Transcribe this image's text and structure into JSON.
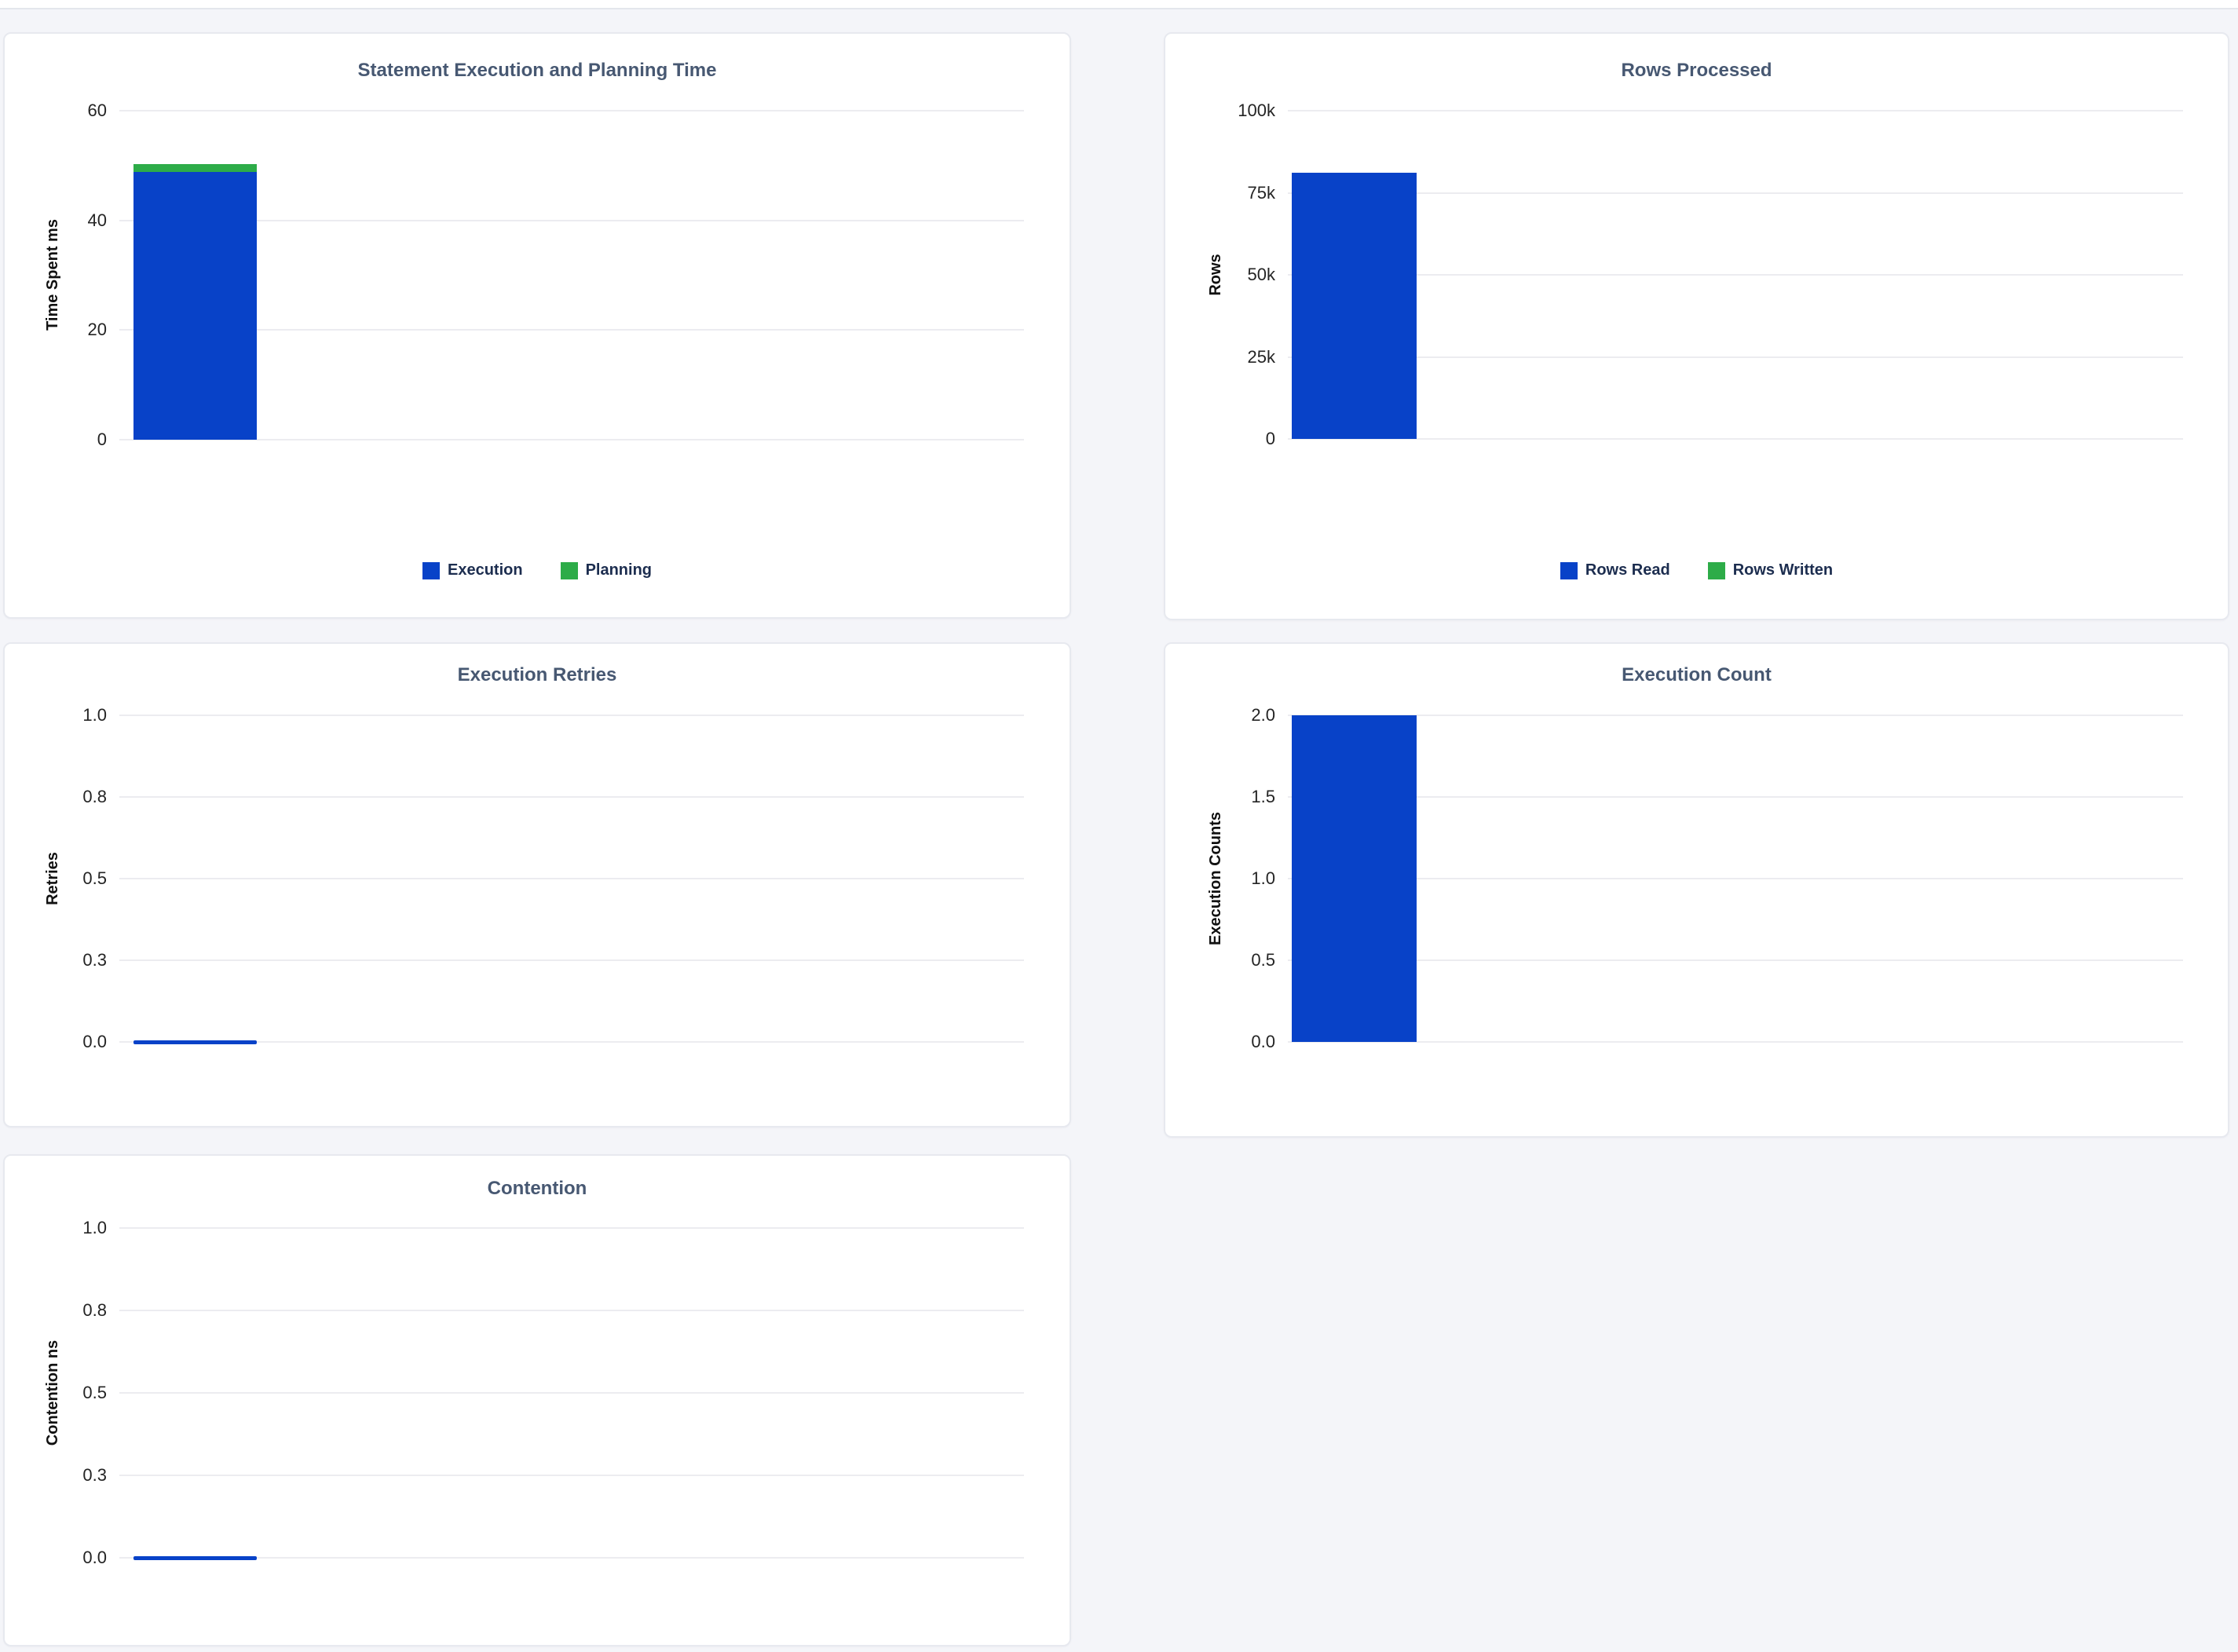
{
  "colors": {
    "blue": "#0842c8",
    "green": "#2dac48",
    "title": "#475872",
    "tick": "#242424",
    "legend_text": "#1c2d4f",
    "grid": "#ececf0",
    "card_border": "#e7e9ef",
    "card_bg": "#ffffff",
    "page_bg": "#f4f5f9"
  },
  "chart_data": [
    {
      "type": "bar",
      "title": "Statement Execution and Planning Time",
      "ylabel": "Time Spent ms",
      "ylim": [
        0,
        60
      ],
      "yticks": [
        "60",
        "40",
        "20",
        "0"
      ],
      "stacked": true,
      "grid": "horizontal",
      "legend_position": "bottom-center",
      "series": [
        {
          "name": "Execution",
          "value": 48.8,
          "color": "blue"
        },
        {
          "name": "Planning",
          "value": 1.5,
          "color": "green"
        }
      ],
      "legend": [
        {
          "label": "Execution",
          "color": "blue"
        },
        {
          "label": "Planning",
          "color": "green"
        }
      ]
    },
    {
      "type": "bar",
      "title": "Rows Processed",
      "ylabel": "Rows",
      "ylim": [
        0,
        100000
      ],
      "yticks": [
        "100k",
        "75k",
        "50k",
        "25k",
        "0"
      ],
      "grid": "horizontal",
      "legend_position": "bottom-center",
      "series": [
        {
          "name": "Rows Read",
          "value": 81000,
          "color": "blue"
        },
        {
          "name": "Rows Written",
          "value": 0,
          "color": "green"
        }
      ],
      "legend": [
        {
          "label": "Rows Read",
          "color": "blue"
        },
        {
          "label": "Rows Written",
          "color": "green"
        }
      ]
    },
    {
      "type": "bar",
      "title": "Execution Retries",
      "ylabel": "Retries",
      "ylim": [
        0,
        1
      ],
      "yticks": [
        "1.0",
        "0.8",
        "0.5",
        "0.3",
        "0.0"
      ],
      "grid": "horizontal",
      "zero_line": true,
      "series": [
        {
          "name": "Retries",
          "value": 0,
          "color": "blue"
        }
      ]
    },
    {
      "type": "bar",
      "title": "Execution Count",
      "ylabel": "Execution Counts",
      "ylim": [
        0,
        2
      ],
      "yticks": [
        "2.0",
        "1.5",
        "1.0",
        "0.5",
        "0.0"
      ],
      "grid": "horizontal",
      "series": [
        {
          "name": "Execution Count",
          "value": 2,
          "color": "blue"
        }
      ]
    },
    {
      "type": "bar",
      "title": "Contention",
      "ylabel": "Contention ns",
      "ylim": [
        0,
        1
      ],
      "yticks": [
        "1.0",
        "0.8",
        "0.5",
        "0.3",
        "0.0"
      ],
      "grid": "horizontal",
      "zero_line": true,
      "series": [
        {
          "name": "Contention",
          "value": 0,
          "color": "blue"
        }
      ]
    }
  ]
}
